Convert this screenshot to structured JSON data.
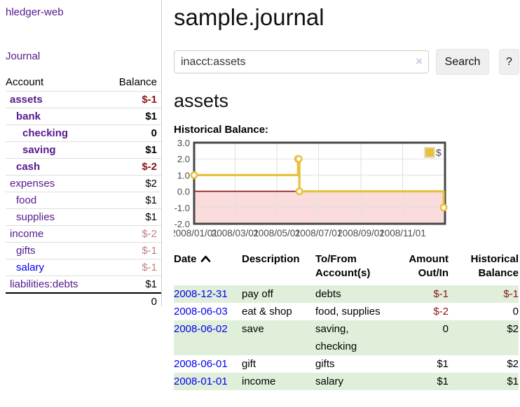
{
  "app": {
    "title": "hledger-web"
  },
  "sidebar": {
    "journal_link": "Journal",
    "table": {
      "account_header": "Account",
      "balance_header": "Balance",
      "rows": [
        {
          "name": "assets",
          "balance": "$-1",
          "depth": 0,
          "bold": true,
          "negative": "strong"
        },
        {
          "name": "bank",
          "balance": "$1",
          "depth": 1,
          "bold": true,
          "negative": "none"
        },
        {
          "name": "checking",
          "balance": "0",
          "depth": 2,
          "bold": true,
          "negative": "none"
        },
        {
          "name": "saving",
          "balance": "$1",
          "depth": 2,
          "bold": true,
          "negative": "none"
        },
        {
          "name": "cash",
          "balance": "$-2",
          "depth": 1,
          "bold": true,
          "negative": "strong"
        },
        {
          "name": "expenses",
          "balance": "$2",
          "depth": 0,
          "bold": false,
          "negative": "none"
        },
        {
          "name": "food",
          "balance": "$1",
          "depth": 1,
          "bold": false,
          "negative": "none"
        },
        {
          "name": "supplies",
          "balance": "$1",
          "depth": 1,
          "bold": false,
          "negative": "none"
        },
        {
          "name": "income",
          "balance": "$-2",
          "depth": 0,
          "bold": false,
          "negative": "soft"
        },
        {
          "name": "gifts",
          "balance": "$-1",
          "depth": 1,
          "bold": false,
          "negative": "soft"
        },
        {
          "name": "salary",
          "balance": "$-1",
          "depth": 1,
          "bold": false,
          "negative": "soft",
          "unvisited": true
        },
        {
          "name": "liabilities:debts",
          "balance": "$1",
          "depth": 0,
          "bold": false,
          "negative": "none"
        }
      ],
      "total": "0"
    }
  },
  "main": {
    "title": "sample.journal",
    "search": {
      "value": "inacct:assets",
      "clear_icon": "×",
      "search_button": "Search",
      "help_button": "?"
    },
    "account_heading": "assets",
    "chart_label": "Historical Balance:",
    "register": {
      "headers": {
        "date": "Date",
        "description": "Description",
        "account": "To/From Account(s)",
        "amount": "Amount Out/In",
        "balance": "Historical Balance"
      },
      "rows": [
        {
          "date": "2008-12-31",
          "description": "pay off",
          "accounts": "debts",
          "amount": "$-1",
          "amount_negative": true,
          "balance": "$-1",
          "balance_negative": true
        },
        {
          "date": "2008-06-03",
          "description": "eat & shop",
          "accounts": "food, supplies",
          "amount": "$-2",
          "amount_negative": true,
          "balance": "0",
          "balance_negative": false
        },
        {
          "date": "2008-06-02",
          "description": "save",
          "accounts": "saving, checking",
          "amount": "0",
          "amount_negative": false,
          "balance": "$2",
          "balance_negative": false
        },
        {
          "date": "2008-06-01",
          "description": "gift",
          "accounts": "gifts",
          "amount": "$1",
          "amount_negative": false,
          "balance": "$2",
          "balance_negative": false
        },
        {
          "date": "2008-01-01",
          "description": "income",
          "accounts": "salary",
          "amount": "$1",
          "amount_negative": false,
          "balance": "$1",
          "balance_negative": false
        }
      ]
    }
  },
  "chart_data": {
    "type": "line",
    "step": true,
    "title": "Historical Balance:",
    "series": [
      {
        "name": "$",
        "points": [
          [
            "2008-01-01",
            1
          ],
          [
            "2008-06-01",
            2
          ],
          [
            "2008-06-02",
            2
          ],
          [
            "2008-06-03",
            0
          ],
          [
            "2008-12-31",
            -1
          ]
        ]
      }
    ],
    "x_ticks": [
      "2008/01/01",
      "2008/03/01",
      "2008/05/01",
      "2008/07/01",
      "2008/09/01",
      "2008/11/01"
    ],
    "y_ticks": [
      3.0,
      2.0,
      1.0,
      0.0,
      -1.0,
      -2.0
    ],
    "ylim": [
      -2,
      3
    ],
    "xlim_days": 367,
    "legend": {
      "label": "$",
      "position": "top-right"
    },
    "grid": true
  },
  "colors": {
    "link_purple": "#551a8b",
    "link_blue": "#0000ee",
    "negative_strong": "#8b1417",
    "negative_soft": "#c27f80",
    "row_stripe_green": "#e0efda",
    "chart_line_gold": "#e7c13e",
    "chart_zero_line": "#8f1010",
    "chart_negative_fill": "#fadcdc",
    "chart_border": "#474747",
    "chart_grid": "#e0e0e0",
    "chart_tick_text": "#4a4a4a"
  }
}
